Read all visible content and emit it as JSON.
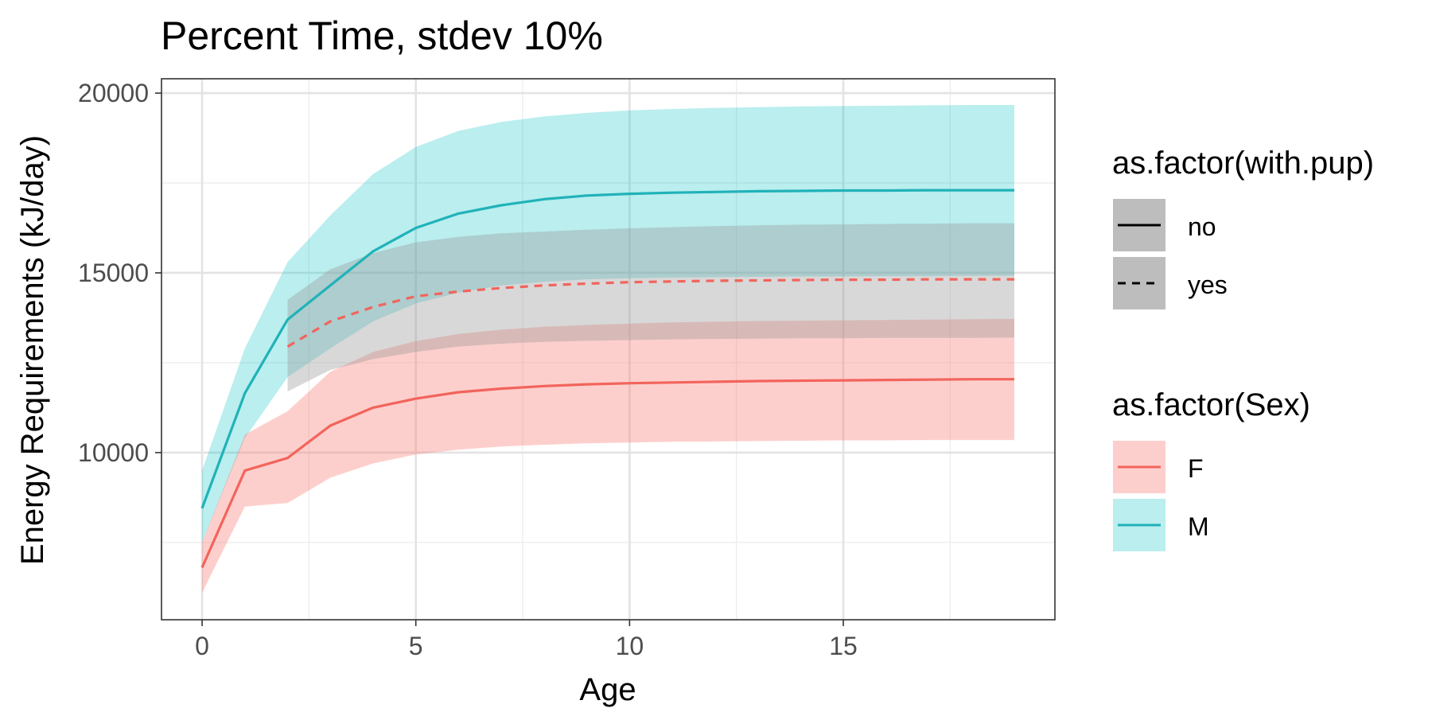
{
  "chart_data": {
    "type": "line",
    "title": "Percent Time, stdev 10%",
    "xlabel": "Age",
    "ylabel": "Energy Requirements (kJ/day)",
    "xlim": [
      -0.95,
      19.95
    ],
    "ylim": [
      5350,
      20400
    ],
    "x_ticks": [
      0,
      5,
      10,
      15
    ],
    "x_tick_labels": [
      "0",
      "5",
      "10",
      "15"
    ],
    "y_ticks": [
      10000,
      15000,
      20000
    ],
    "y_tick_labels": [
      "10000",
      "15000",
      "20000"
    ],
    "grid": true,
    "legend_position": "right",
    "colors": {
      "F": "#f2645c",
      "M": "#20b2b8",
      "F_ribbon": "#f8766d",
      "M_ribbon": "#00bfc4",
      "grey_ribbon": "#999999"
    },
    "legends": [
      {
        "title": "as.factor(with.pup)",
        "entries": [
          {
            "label": "no",
            "linetype": "solid"
          },
          {
            "label": "yes",
            "linetype": "dashed"
          }
        ]
      },
      {
        "title": "as.factor(Sex)",
        "entries": [
          {
            "label": "F",
            "color": "#f2645c"
          },
          {
            "label": "M",
            "color": "#20b2b8"
          }
        ]
      }
    ],
    "series": [
      {
        "sex": "M",
        "with_pup": "no",
        "x": [
          0,
          1,
          2,
          3,
          4,
          5,
          6,
          7,
          8,
          9,
          10,
          11,
          12,
          13,
          14,
          15,
          16,
          17,
          18,
          19
        ],
        "y": [
          8450,
          11650,
          13700,
          14650,
          15600,
          16250,
          16650,
          16880,
          17050,
          17150,
          17200,
          17230,
          17250,
          17270,
          17280,
          17290,
          17290,
          17300,
          17300,
          17300
        ],
        "lower": [
          7500,
          10400,
          12100,
          12900,
          13650,
          14150,
          14450,
          14650,
          14750,
          14820,
          14850,
          14870,
          14880,
          14890,
          14900,
          14900,
          14910,
          14910,
          14920,
          14920
        ],
        "upper": [
          9500,
          12900,
          15300,
          16600,
          17750,
          18500,
          18950,
          19200,
          19350,
          19450,
          19520,
          19560,
          19590,
          19610,
          19630,
          19640,
          19650,
          19660,
          19670,
          19670
        ]
      },
      {
        "sex": "F",
        "with_pup": "no",
        "x": [
          0,
          1,
          2,
          3,
          4,
          5,
          6,
          7,
          8,
          9,
          10,
          11,
          12,
          13,
          14,
          15,
          16,
          17,
          18,
          19
        ],
        "y": [
          6800,
          9500,
          9850,
          10750,
          11250,
          11500,
          11680,
          11780,
          11850,
          11900,
          11930,
          11950,
          11970,
          11990,
          12000,
          12010,
          12020,
          12030,
          12040,
          12040
        ],
        "lower": [
          6100,
          8500,
          8600,
          9300,
          9700,
          9950,
          10080,
          10170,
          10220,
          10260,
          10280,
          10300,
          10310,
          10320,
          10330,
          10340,
          10340,
          10350,
          10350,
          10350
        ],
        "upper": [
          7500,
          10500,
          11150,
          12250,
          12800,
          13100,
          13300,
          13420,
          13500,
          13550,
          13590,
          13620,
          13640,
          13660,
          13670,
          13680,
          13690,
          13700,
          13710,
          13720
        ]
      },
      {
        "sex": "F",
        "with_pup": "yes",
        "x": [
          2,
          3,
          4,
          5,
          6,
          7,
          8,
          9,
          10,
          11,
          12,
          13,
          14,
          15,
          16,
          17,
          18,
          19
        ],
        "y": [
          12950,
          13650,
          14050,
          14350,
          14480,
          14580,
          14650,
          14700,
          14740,
          14760,
          14780,
          14790,
          14800,
          14810,
          14810,
          14820,
          14820,
          14820
        ],
        "lower": [
          11700,
          12300,
          12600,
          12800,
          12950,
          13030,
          13080,
          13110,
          13130,
          13150,
          13160,
          13170,
          13180,
          13180,
          13190,
          13190,
          13190,
          13200
        ],
        "upper": [
          14250,
          15100,
          15550,
          15850,
          16000,
          16100,
          16150,
          16200,
          16240,
          16270,
          16300,
          16320,
          16340,
          16350,
          16360,
          16370,
          16380,
          16380
        ]
      }
    ]
  }
}
